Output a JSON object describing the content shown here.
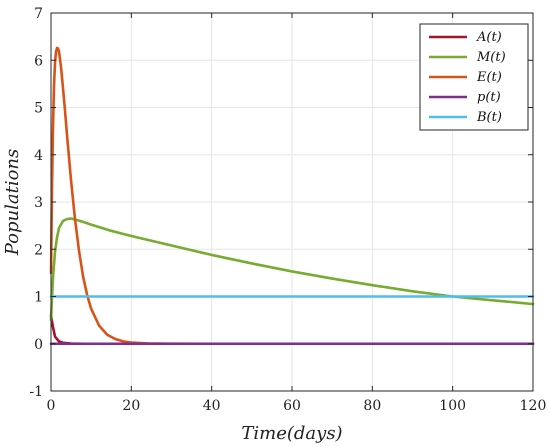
{
  "chart_data": {
    "type": "line",
    "title": "",
    "xlabel": "Time(days)",
    "ylabel": "Populations",
    "xlim": [
      0,
      120
    ],
    "ylim": [
      -1,
      7
    ],
    "xticks": [
      0,
      20,
      40,
      60,
      80,
      100,
      120
    ],
    "yticks": [
      -1,
      0,
      1,
      2,
      3,
      4,
      5,
      6,
      7
    ],
    "grid": true,
    "legend_position": "top-right",
    "series": [
      {
        "name": "A(t)",
        "color": "#A2142F",
        "x": [
          0,
          0.5,
          1,
          2,
          3,
          5,
          8,
          120
        ],
        "y": [
          0.6,
          0.35,
          0.15,
          0.05,
          0.02,
          0.005,
          0,
          0
        ]
      },
      {
        "name": "M(t)",
        "color": "#77AC30",
        "x": [
          0,
          0.25,
          0.5,
          1,
          1.5,
          2,
          3,
          4,
          5,
          6,
          8,
          10,
          15,
          20,
          30,
          40,
          50,
          60,
          70,
          80,
          90,
          100,
          110,
          120
        ],
        "y": [
          0.5,
          0.95,
          1.4,
          1.95,
          2.25,
          2.45,
          2.6,
          2.64,
          2.65,
          2.63,
          2.58,
          2.52,
          2.39,
          2.28,
          2.08,
          1.88,
          1.7,
          1.53,
          1.38,
          1.24,
          1.11,
          1.0,
          0.92,
          0.84
        ]
      },
      {
        "name": "E(t)",
        "color": "#D95319",
        "x": [
          0,
          0.25,
          0.5,
          0.75,
          1,
          1.25,
          1.5,
          1.75,
          2,
          2.5,
          3,
          3.5,
          4,
          5,
          6,
          7,
          8,
          9,
          10,
          12,
          14,
          16,
          18,
          20,
          24,
          30,
          40,
          60,
          120
        ],
        "y": [
          1.5,
          3.3,
          4.6,
          5.45,
          5.95,
          6.18,
          6.26,
          6.25,
          6.18,
          5.85,
          5.4,
          4.92,
          4.4,
          3.45,
          2.62,
          1.95,
          1.42,
          1.03,
          0.74,
          0.38,
          0.19,
          0.1,
          0.05,
          0.025,
          0.008,
          0.002,
          0,
          0,
          0
        ]
      },
      {
        "name": "p(t)",
        "color": "#7E2F8E",
        "x": [
          0,
          120
        ],
        "y": [
          0,
          0
        ]
      },
      {
        "name": "B(t)",
        "color": "#4DBEEE",
        "x": [
          0,
          120
        ],
        "y": [
          1,
          1
        ]
      }
    ]
  }
}
